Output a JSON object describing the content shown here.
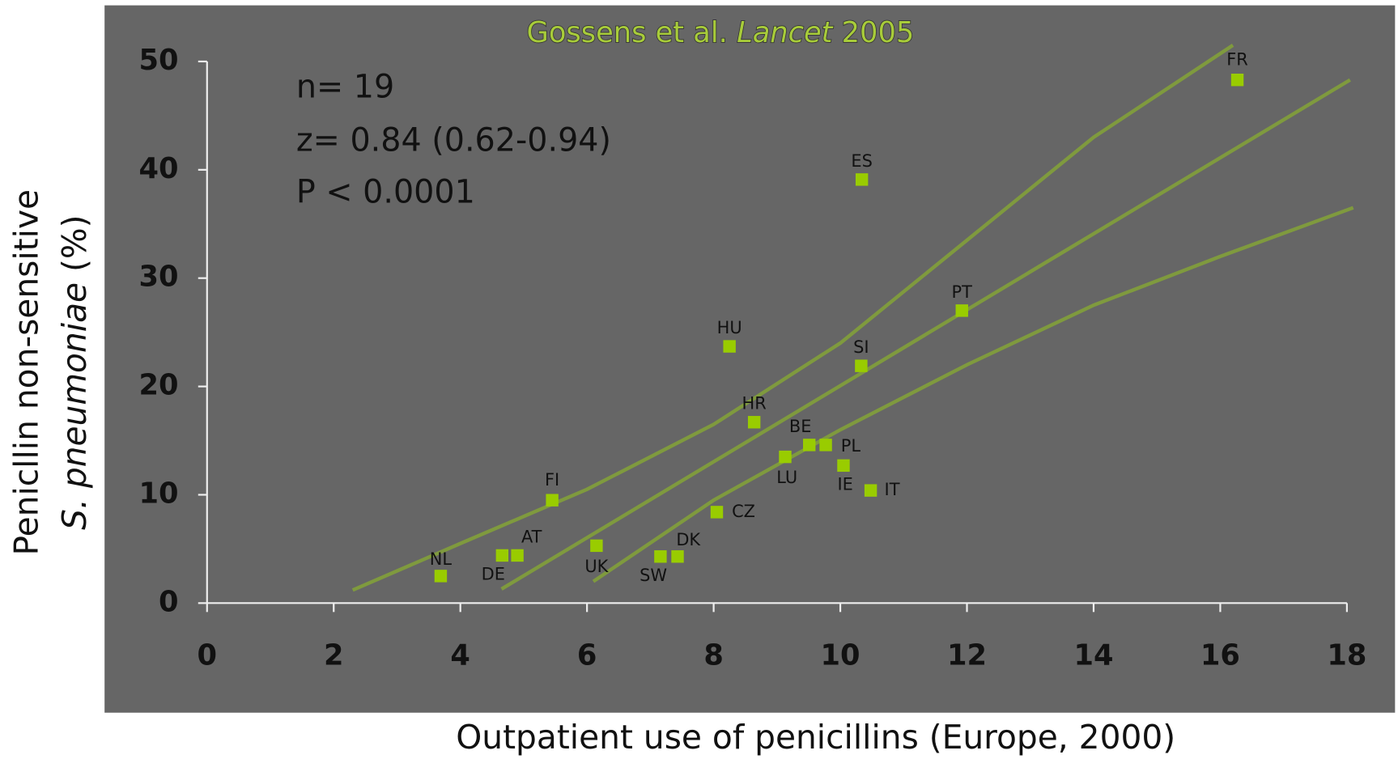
{
  "chart_data": {
    "type": "scatter",
    "title_parts": [
      "Gossens et al.",
      "Lancet",
      "2005"
    ],
    "title_color": "#a8cc3a",
    "x_label": "Outpatient use of penicillins (Europe, 2000)",
    "y_label_parts": [
      "Penicllin non-sensitive",
      "S. pneumoniae",
      "(%)"
    ],
    "annotations": [
      "n= 19",
      "z= 0.84 (0.62-0.94)",
      "P < 0.0001"
    ],
    "point_labels": [
      "FR",
      "ES",
      "PT",
      "HU",
      "SI",
      "HR",
      "BE",
      "PL",
      "LU",
      "IE",
      "IT",
      "FI",
      "CZ",
      "UK",
      "DK",
      "SW",
      "AT",
      "DE",
      "NL"
    ],
    "x": [
      16.27,
      10.34,
      11.92,
      8.25,
      10.33,
      8.64,
      9.51,
      9.77,
      9.13,
      10.05,
      10.48,
      5.45,
      8.05,
      6.15,
      7.43,
      7.16,
      4.9,
      4.66,
      3.69
    ],
    "values": [
      48.3,
      39.1,
      27.0,
      23.7,
      21.9,
      16.7,
      14.6,
      14.6,
      13.5,
      12.7,
      10.4,
      9.5,
      8.4,
      5.3,
      4.3,
      4.3,
      4.4,
      4.4,
      2.5
    ],
    "color": "#99cc00",
    "lines": [
      {
        "x": [
          4.65,
          18.05
        ],
        "values": [
          1.3,
          48.3
        ]
      },
      {
        "x": [
          2.3,
          4,
          6,
          8,
          10,
          12,
          14,
          16.2
        ],
        "values": [
          1.2,
          5.5,
          10.5,
          16.5,
          24,
          33.5,
          43,
          51.5
        ]
      },
      {
        "x": [
          6.1,
          8,
          10,
          12,
          14,
          16,
          18.1
        ],
        "values": [
          2,
          9.5,
          16,
          22,
          27.5,
          32,
          36.5
        ]
      }
    ],
    "line_color": "#7f9a3e",
    "xlim": [
      0,
      18
    ],
    "xticks": [
      0,
      2,
      4,
      6,
      8,
      10,
      12,
      14,
      16,
      18
    ],
    "ylim": [
      0,
      50
    ],
    "yticks": [
      0,
      10,
      20,
      30,
      40,
      50
    ]
  }
}
